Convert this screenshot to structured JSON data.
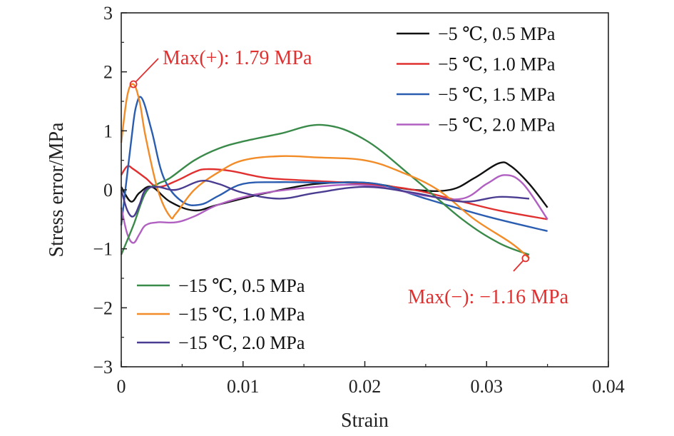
{
  "chart_data": {
    "type": "line",
    "xlabel": "Strain",
    "ylabel": "Stress error/MPa",
    "xlim": [
      0,
      0.04
    ],
    "ylim": [
      -3,
      3
    ],
    "xticks": [
      0,
      0.01,
      0.02,
      0.03,
      0.04
    ],
    "xtick_labels": [
      "0",
      "0.01",
      "0.02",
      "0.03",
      "0.04"
    ],
    "yticks": [
      -3,
      -2,
      -1,
      0,
      1,
      2,
      3
    ],
    "ytick_labels": [
      "−3",
      "−2",
      "−1",
      "0",
      "1",
      "2",
      "3"
    ],
    "grid": false,
    "legends": [
      {
        "placement": "top-right",
        "entries": [
          0,
          1,
          2,
          3
        ]
      },
      {
        "placement": "bottom-left",
        "entries": [
          4,
          5,
          6
        ]
      }
    ],
    "series": [
      {
        "name": "−5 ℃, 0.5 MPa",
        "color": "#111111",
        "x": [
          0,
          0.0008,
          0.0015,
          0.0025,
          0.004,
          0.006,
          0.008,
          0.012,
          0.016,
          0.02,
          0.024,
          0.027,
          0.029,
          0.031,
          0.032,
          0.0335,
          0.035
        ],
        "y": [
          0.05,
          -0.2,
          -0.05,
          0.05,
          -0.2,
          -0.35,
          -0.25,
          -0.05,
          0.1,
          0.12,
          0.0,
          0.0,
          0.2,
          0.45,
          0.4,
          0.1,
          -0.3
        ]
      },
      {
        "name": "−5 ℃, 1.0 MPa",
        "color": "#e03030",
        "x": [
          0,
          0.0005,
          0.001,
          0.002,
          0.003,
          0.0045,
          0.006,
          0.007,
          0.009,
          0.012,
          0.016,
          0.02,
          0.024,
          0.028,
          0.031,
          0.035
        ],
        "y": [
          0.25,
          0.4,
          0.35,
          0.2,
          0.05,
          0.15,
          0.3,
          0.35,
          0.32,
          0.2,
          0.15,
          0.1,
          0.0,
          -0.2,
          -0.35,
          -0.5
        ]
      },
      {
        "name": "−5 ℃, 1.5 MPa",
        "color": "#2a5db0",
        "x": [
          0,
          0.0008,
          0.0012,
          0.0017,
          0.0025,
          0.0035,
          0.005,
          0.0065,
          0.008,
          0.01,
          0.013,
          0.017,
          0.021,
          0.025,
          0.03,
          0.035
        ],
        "y": [
          -0.6,
          0.8,
          1.4,
          1.55,
          1.0,
          0.2,
          -0.2,
          -0.25,
          -0.1,
          0.1,
          0.13,
          0.12,
          0.1,
          -0.15,
          -0.45,
          -0.7
        ]
      },
      {
        "name": "−5 ℃, 2.0 MPa",
        "color": "#b060c0",
        "x": [
          0,
          0.0005,
          0.001,
          0.0015,
          0.002,
          0.003,
          0.0045,
          0.006,
          0.008,
          0.011,
          0.015,
          0.02,
          0.025,
          0.028,
          0.03,
          0.0315,
          0.033,
          0.035
        ],
        "y": [
          -0.3,
          -0.75,
          -0.9,
          -0.75,
          -0.6,
          -0.55,
          -0.55,
          -0.45,
          -0.25,
          -0.08,
          0.03,
          0.08,
          -0.1,
          -0.15,
          0.1,
          0.25,
          0.1,
          -0.5
        ]
      },
      {
        "name": "−15 ℃, 0.5 MPa",
        "color": "#3a8a4a",
        "x": [
          0,
          0.001,
          0.002,
          0.003,
          0.004,
          0.006,
          0.008,
          0.01,
          0.013,
          0.0165,
          0.02,
          0.024,
          0.028,
          0.031,
          0.0335
        ],
        "y": [
          -1.1,
          -0.6,
          -0.05,
          0.1,
          0.2,
          0.5,
          0.7,
          0.82,
          0.95,
          1.1,
          0.85,
          0.2,
          -0.5,
          -0.9,
          -1.1
        ]
      },
      {
        "name": "−15 ℃, 1.0 MPa",
        "color": "#f28c28",
        "x": [
          0,
          0.0005,
          0.001,
          0.0015,
          0.002,
          0.003,
          0.004,
          0.0045,
          0.006,
          0.008,
          0.01,
          0.013,
          0.016,
          0.02,
          0.023,
          0.026,
          0.029,
          0.032,
          0.0335
        ],
        "y": [
          0.8,
          1.6,
          1.79,
          1.5,
          0.9,
          0.0,
          -0.45,
          -0.4,
          0.0,
          0.3,
          0.5,
          0.57,
          0.55,
          0.5,
          0.3,
          0.0,
          -0.5,
          -0.9,
          -1.16
        ]
      },
      {
        "name": "−15 ℃, 2.0 MPa",
        "color": "#4a3c90",
        "x": [
          0,
          0.0005,
          0.001,
          0.0015,
          0.002,
          0.003,
          0.0045,
          0.0065,
          0.008,
          0.01,
          0.013,
          0.016,
          0.02,
          0.024,
          0.028,
          0.031,
          0.0335
        ],
        "y": [
          0.0,
          -0.35,
          -0.45,
          -0.25,
          0.0,
          0.05,
          0.0,
          0.15,
          0.1,
          -0.05,
          -0.15,
          -0.05,
          0.05,
          -0.05,
          -0.2,
          -0.12,
          -0.15
        ]
      }
    ],
    "annotations": [
      {
        "text": "Max(+): 1.79 MPa",
        "x": 0.001,
        "y": 1.79,
        "color": "#e03030"
      },
      {
        "text": "Max(−): −1.16 MPa",
        "x": 0.0332,
        "y": -1.16,
        "color": "#e03030"
      }
    ]
  }
}
